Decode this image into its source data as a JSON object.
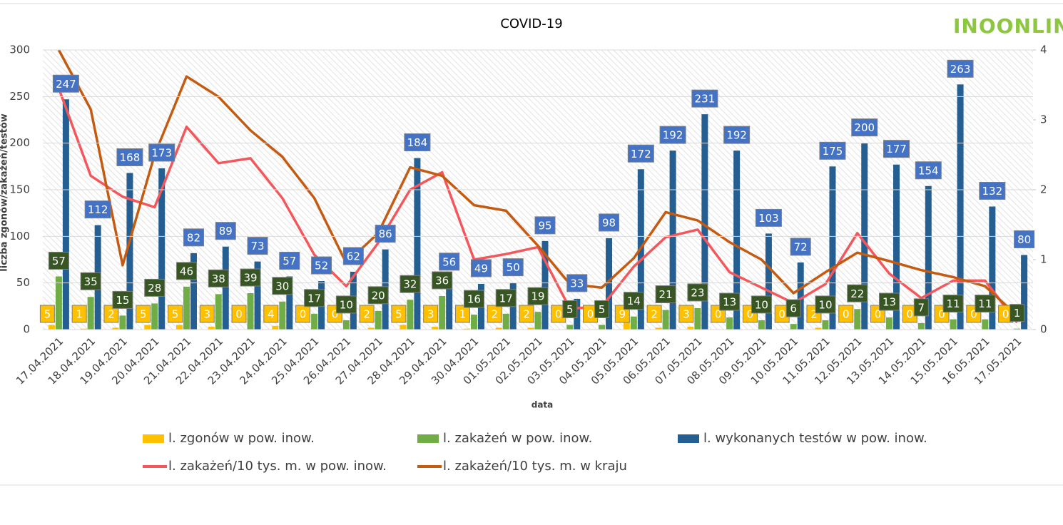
{
  "chart_data": {
    "type": "bar",
    "title": "COVID-19",
    "logo": "INOONLINE",
    "x_label": "data",
    "y_label": "liczba zgonów/zakażeń/testów",
    "categories": [
      "17.04.2021",
      "18.04.2021",
      "19.04.2021",
      "20.04.2021",
      "21.04.2021",
      "22.04.2021",
      "23.04.2021",
      "24.04.2021",
      "25.04.2021",
      "26.04.2021",
      "27.04.2021",
      "28.04.2021",
      "29.04.2021",
      "30.04.2021",
      "01.05.2021",
      "02.05.2021",
      "03.05.2021",
      "04.05.2021",
      "05.05.2021",
      "06.05.2021",
      "07.05.2021",
      "08.05.2021",
      "09.05.2021",
      "10.05.2021",
      "11.05.2021",
      "12.05.2021",
      "13.05.2021",
      "14.05.2021",
      "15.05.2021",
      "16.05.2021",
      "17.05.2021"
    ],
    "series": [
      {
        "name": "l. zgonów w pow. inow.",
        "type": "bar",
        "color": "#ffc000",
        "label_color": "#ffc000",
        "label_text": "#ffffff",
        "values": [
          5,
          1,
          2,
          5,
          5,
          3,
          0,
          4,
          0,
          0,
          2,
          5,
          3,
          1,
          2,
          2,
          0,
          0,
          9,
          2,
          3,
          0,
          0,
          0,
          2,
          0,
          0,
          0,
          0,
          0,
          0
        ]
      },
      {
        "name": "l. zakażeń w pow. inow.",
        "type": "bar",
        "color": "#70ad47",
        "label_color": "#375623",
        "label_text": "#ffffff",
        "values": [
          57,
          35,
          15,
          28,
          46,
          38,
          39,
          30,
          17,
          10,
          20,
          32,
          36,
          16,
          17,
          19,
          5,
          5,
          14,
          21,
          23,
          13,
          10,
          6,
          10,
          22,
          13,
          7,
          11,
          11,
          1
        ]
      },
      {
        "name": "l. wykonanych testów w pow. inow.",
        "type": "bar",
        "color": "#255e91",
        "label_color": "#4472c4",
        "label_text": "#ffffff",
        "values": [
          247,
          112,
          168,
          173,
          82,
          89,
          73,
          57,
          52,
          62,
          86,
          184,
          56,
          49,
          50,
          95,
          33,
          98,
          172,
          192,
          231,
          192,
          103,
          72,
          175,
          200,
          177,
          154,
          263,
          132,
          80
        ]
      },
      {
        "name": "l. zakażeń/10 tys. m. w pow. inow.",
        "type": "line",
        "axis": "y2",
        "color": "#f4575b",
        "values": [
          3.45,
          2.2,
          1.9,
          1.75,
          2.9,
          2.38,
          2.45,
          1.88,
          1.07,
          0.62,
          1.24,
          2.0,
          2.25,
          1.0,
          1.08,
          1.18,
          0.3,
          0.33,
          0.9,
          1.32,
          1.43,
          0.82,
          0.6,
          0.38,
          0.65,
          1.38,
          0.8,
          0.45,
          0.7,
          0.7,
          0.1
        ]
      },
      {
        "name": "l. zakażeń/10 tys. m. w kraju",
        "type": "line",
        "axis": "y2",
        "color": "#c55a11",
        "values": [
          4.0,
          3.15,
          0.92,
          2.5,
          3.62,
          3.33,
          2.85,
          2.47,
          1.88,
          0.95,
          1.38,
          2.32,
          2.2,
          1.78,
          1.7,
          1.2,
          0.65,
          0.6,
          1.02,
          1.68,
          1.56,
          1.25,
          1.0,
          0.52,
          0.82,
          1.1,
          0.98,
          0.85,
          0.75,
          0.62,
          0.2
        ]
      }
    ],
    "ylim": [
      0,
      300
    ],
    "yticks": [
      0,
      50,
      100,
      150,
      200,
      250,
      300
    ],
    "y2lim": [
      0,
      4
    ],
    "y2ticks": [
      0,
      1,
      2,
      3,
      4
    ],
    "grid": true
  }
}
